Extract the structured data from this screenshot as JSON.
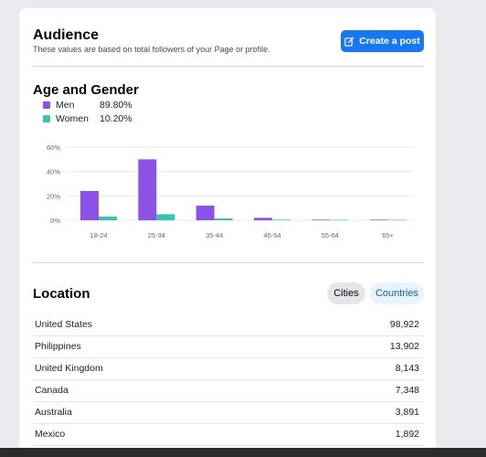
{
  "audience": {
    "title": "Audience",
    "subtitle": "These values are based on total followers of your Page or profile.",
    "create_post_label": "Create a post",
    "create_post_icon": "edit-icon"
  },
  "age_gender": {
    "title": "Age and Gender",
    "legend": [
      {
        "name": "Men",
        "percent": "89.80%",
        "color": "#8c52e8"
      },
      {
        "name": "Women",
        "percent": "10.20%",
        "color": "#37c4b2"
      }
    ]
  },
  "chart_data": {
    "type": "bar",
    "categories": [
      "18-24",
      "25-34",
      "35-44",
      "45-54",
      "55-64",
      "65+"
    ],
    "series": [
      {
        "name": "Men",
        "values": [
          24,
          50,
          12,
          2,
          0.5,
          0.5
        ],
        "color": "#8c52e8"
      },
      {
        "name": "Women",
        "values": [
          3,
          5,
          1.5,
          0.5,
          0.3,
          0.3
        ],
        "color": "#37c4b2"
      }
    ],
    "ylim": [
      0,
      60
    ],
    "yticks": [
      "0%",
      "20%",
      "40%",
      "60%"
    ],
    "grid": true
  },
  "location": {
    "title": "Location",
    "tabs": [
      {
        "label": "Cities",
        "active": true
      },
      {
        "label": "Countries",
        "active": false
      }
    ],
    "rows": [
      {
        "name": "United States",
        "value": "98,922"
      },
      {
        "name": "Philippines",
        "value": "13,902"
      },
      {
        "name": "United Kingdom",
        "value": "8,143"
      },
      {
        "name": "Canada",
        "value": "7,348"
      },
      {
        "name": "Australia",
        "value": "3,891"
      },
      {
        "name": "Mexico",
        "value": "1,892"
      }
    ]
  }
}
